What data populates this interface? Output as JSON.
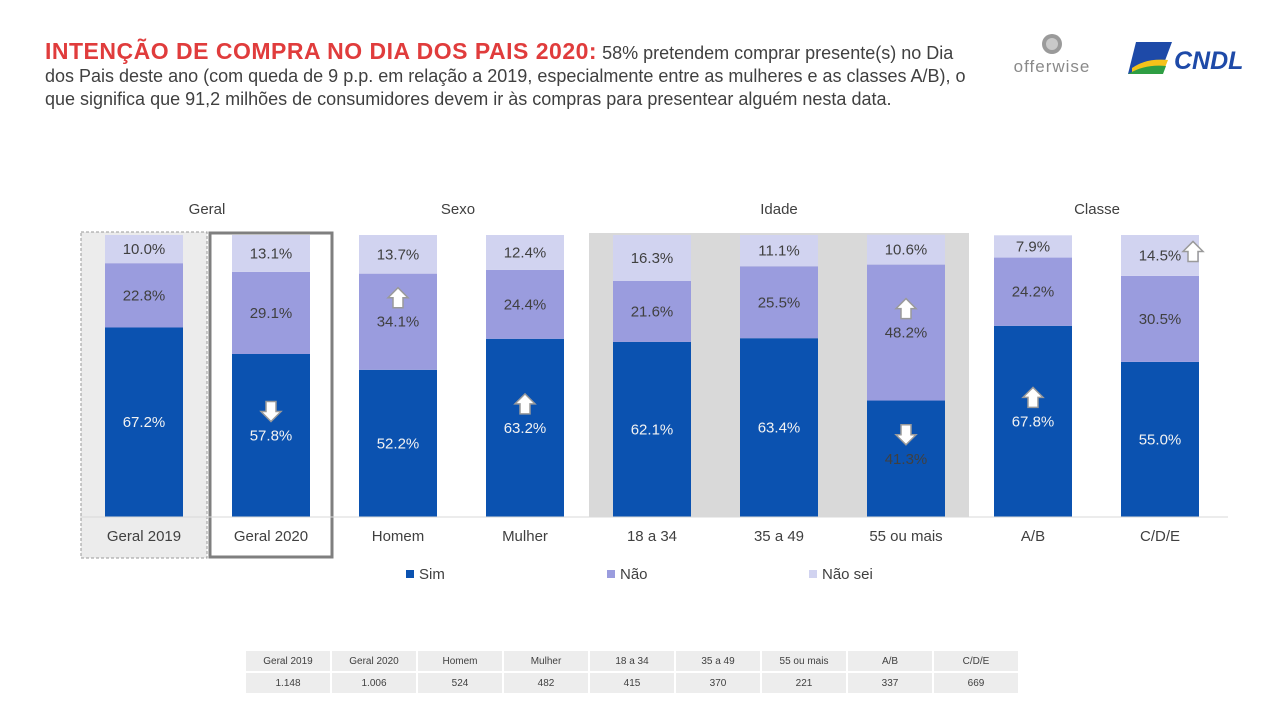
{
  "title": {
    "highlight": "INTENÇÃO DE COMPRA NO DIA DOS PAIS 2020:",
    "text": " 58% pretendem comprar presente(s) no Dia dos Pais deste ano (com queda de 9 p.p. em relação a 2019, especialmente entre as mulheres e as classes A/B), o que significa que 91,2 milhões de consumidores devem ir às compras para presentear alguém nesta data."
  },
  "logos": {
    "offerwise": "offerwise",
    "cndl": "CNDL"
  },
  "colors": {
    "sim": "#0b52b0",
    "nao": "#9a9cde",
    "nao_sei": "#d1d3f0",
    "title_red": "#e03c3c",
    "age_band": "#d9d9d9"
  },
  "chart_data": {
    "type": "bar",
    "stacked": true,
    "percent_stacked": true,
    "groups": [
      {
        "name": "Geral",
        "categories": [
          "Geral 2019",
          "Geral 2020"
        ]
      },
      {
        "name": "Sexo",
        "categories": [
          "Homem",
          "Mulher"
        ]
      },
      {
        "name": "Idade",
        "categories": [
          "18 a 34",
          "35 a 49",
          "55 ou mais"
        ]
      },
      {
        "name": "Classe",
        "categories": [
          "A/B",
          "C/D/E"
        ]
      }
    ],
    "categories": [
      "Geral 2019",
      "Geral 2020",
      "Homem",
      "Mulher",
      "18 a 34",
      "35 a 49",
      "55 ou mais",
      "A/B",
      "C/D/E"
    ],
    "series": [
      {
        "name": "Sim",
        "values": [
          67.2,
          57.8,
          52.2,
          63.2,
          62.1,
          63.4,
          41.3,
          67.8,
          55.0
        ],
        "labels": [
          "67.2%",
          "57.8%",
          "52.2%",
          "63.2%",
          "62.1%",
          "63.4%",
          "41.3%",
          "67.8%",
          "55.0%"
        ]
      },
      {
        "name": "Não",
        "values": [
          22.8,
          29.1,
          34.1,
          24.4,
          21.6,
          25.5,
          48.2,
          24.2,
          30.5
        ],
        "labels": [
          "22.8%",
          "29.1%",
          "34.1%",
          "24.4%",
          "21.6%",
          "25.5%",
          "48.2%",
          "24.2%",
          "30.5%"
        ]
      },
      {
        "name": "Não sei",
        "values": [
          10.0,
          13.1,
          13.7,
          12.4,
          16.3,
          11.1,
          10.6,
          7.9,
          14.5
        ],
        "labels": [
          "10.0%",
          "13.1%",
          "13.7%",
          "12.4%",
          "16.3%",
          "11.1%",
          "10.6%",
          "7.9%",
          "14.5%"
        ]
      }
    ],
    "indicators": [
      {
        "category": "Geral 2020",
        "series": "Sim",
        "direction": "down"
      },
      {
        "category": "Homem",
        "series": "Não",
        "direction": "up"
      },
      {
        "category": "Mulher",
        "series": "Sim",
        "direction": "up"
      },
      {
        "category": "55 ou mais",
        "series": "Não",
        "direction": "up"
      },
      {
        "category": "55 ou mais",
        "series": "Sim",
        "direction": "down"
      },
      {
        "category": "A/B",
        "series": "Sim",
        "direction": "up"
      },
      {
        "category": "C/D/E",
        "series": "Não sei",
        "direction": "up"
      }
    ],
    "legend": [
      "Sim",
      "Não",
      "Não sei"
    ],
    "legend_position": "bottom"
  },
  "sample_table": {
    "headers": [
      "Geral 2019",
      "Geral 2020",
      "Homem",
      "Mulher",
      "18 a 34",
      "35 a 49",
      "55 ou mais",
      "A/B",
      "C/D/E"
    ],
    "values": [
      "1.148",
      "1.006",
      "524",
      "482",
      "415",
      "370",
      "221",
      "337",
      "669"
    ]
  }
}
